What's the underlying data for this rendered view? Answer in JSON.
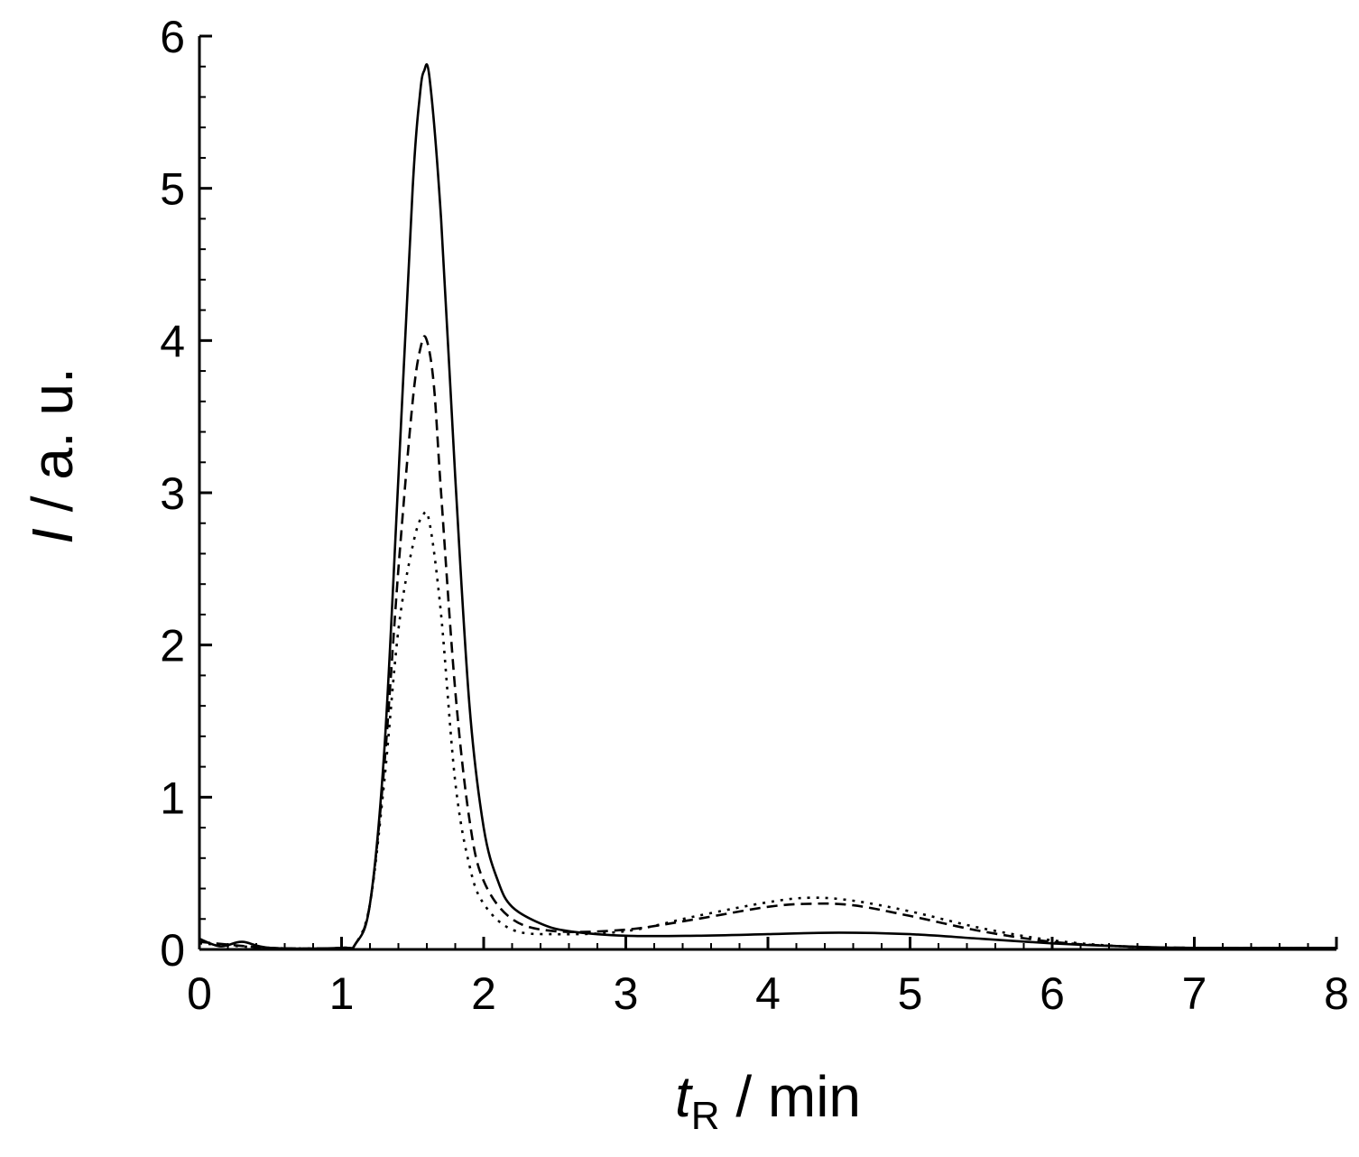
{
  "chart_data": {
    "type": "line",
    "xlabel_main": "t",
    "xlabel_sub": "R",
    "xlabel_rest": " / min",
    "ylabel_main": "I",
    "ylabel_rest": " / a. u.",
    "xlim": [
      0,
      8
    ],
    "ylim": [
      0,
      6
    ],
    "x_ticks": [
      "0",
      "1",
      "2",
      "3",
      "4",
      "5",
      "6",
      "7",
      "8"
    ],
    "y_ticks": [
      "0",
      "1",
      "2",
      "3",
      "4",
      "5",
      "6"
    ],
    "grid": false,
    "legend": "none",
    "series": [
      {
        "style": "solid",
        "x": [
          0,
          0.15,
          0.3,
          0.5,
          1.0,
          1.1,
          1.2,
          1.3,
          1.4,
          1.5,
          1.55,
          1.58,
          1.62,
          1.7,
          1.8,
          1.9,
          2.0,
          2.1,
          2.2,
          2.4,
          2.6,
          3.0,
          3.5,
          4.0,
          4.5,
          5.0,
          5.5,
          6.0,
          6.5,
          7.0,
          8.0
        ],
        "y": [
          0.07,
          0.02,
          0.05,
          0.01,
          0.01,
          0.04,
          0.3,
          1.3,
          3.1,
          5.0,
          5.6,
          5.77,
          5.72,
          4.8,
          3.1,
          1.6,
          0.8,
          0.45,
          0.28,
          0.17,
          0.12,
          0.09,
          0.09,
          0.1,
          0.11,
          0.1,
          0.07,
          0.04,
          0.02,
          0.01,
          0.01
        ]
      },
      {
        "style": "dashed",
        "x": [
          0,
          0.5,
          1.0,
          1.1,
          1.2,
          1.3,
          1.4,
          1.5,
          1.56,
          1.6,
          1.65,
          1.7,
          1.8,
          1.9,
          2.0,
          2.2,
          2.5,
          3.0,
          3.5,
          4.0,
          4.3,
          4.6,
          5.0,
          5.5,
          6.0,
          6.5,
          7.0,
          8.0
        ],
        "y": [
          0.05,
          0.01,
          0.01,
          0.04,
          0.3,
          1.2,
          2.5,
          3.6,
          3.97,
          4.0,
          3.7,
          3.0,
          1.7,
          0.85,
          0.45,
          0.2,
          0.12,
          0.13,
          0.2,
          0.28,
          0.3,
          0.29,
          0.22,
          0.12,
          0.05,
          0.02,
          0.01,
          0.01
        ]
      },
      {
        "style": "dotted",
        "x": [
          0,
          0.5,
          1.0,
          1.1,
          1.2,
          1.3,
          1.4,
          1.5,
          1.57,
          1.62,
          1.7,
          1.8,
          1.9,
          2.0,
          2.2,
          2.5,
          3.0,
          3.5,
          4.0,
          4.3,
          4.6,
          5.0,
          5.5,
          6.0,
          6.5,
          7.0,
          8.0
        ],
        "y": [
          0.04,
          0.01,
          0.01,
          0.04,
          0.3,
          1.1,
          2.1,
          2.65,
          2.85,
          2.8,
          2.2,
          1.1,
          0.55,
          0.3,
          0.13,
          0.1,
          0.12,
          0.22,
          0.31,
          0.34,
          0.32,
          0.25,
          0.14,
          0.06,
          0.02,
          0.01,
          0.01
        ]
      }
    ]
  }
}
